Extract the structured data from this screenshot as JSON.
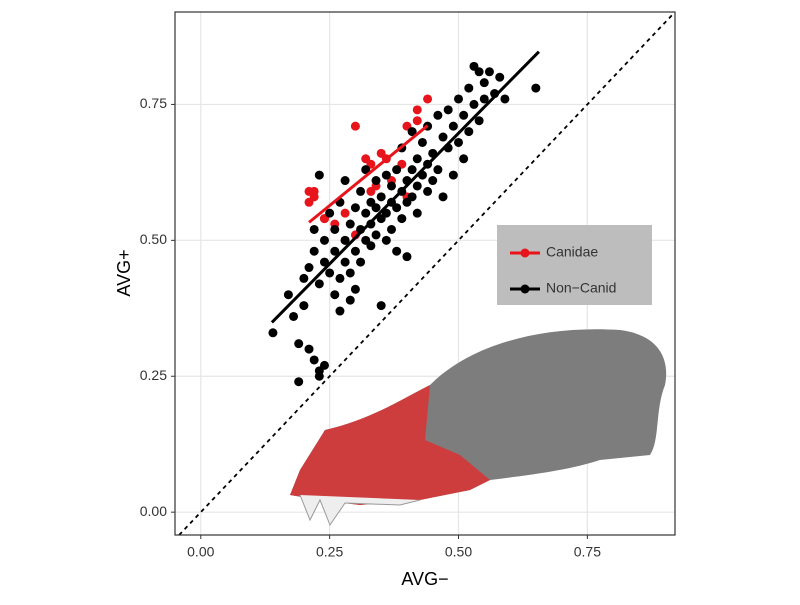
{
  "chart_data": {
    "type": "scatter",
    "x_label": "AVG−",
    "y_label": "AVG+",
    "xlim": [
      -0.05,
      0.92
    ],
    "ylim": [
      -0.042,
      0.92
    ],
    "xticks": [
      {
        "value": 0,
        "label": "0.00"
      },
      {
        "value": 0.25,
        "label": "0.25"
      },
      {
        "value": 0.5,
        "label": "0.50"
      },
      {
        "value": 0.75,
        "label": "0.75"
      }
    ],
    "yticks": [
      {
        "value": 0,
        "label": "0.00"
      },
      {
        "value": 0.25,
        "label": "0.25"
      },
      {
        "value": 0.5,
        "label": "0.50"
      },
      {
        "value": 0.75,
        "label": "0.75"
      }
    ],
    "grid": true,
    "identity_line": true,
    "legend": "right",
    "series": [
      {
        "name": "Canidae",
        "color": "#e8141b",
        "x": [
          0.21,
          0.22,
          0.22,
          0.21,
          0.3,
          0.33,
          0.32,
          0.35,
          0.36,
          0.4,
          0.42,
          0.44,
          0.34,
          0.33,
          0.28,
          0.24,
          0.39,
          0.4,
          0.42,
          0.37,
          0.3,
          0.26,
          0.28,
          0.24
        ],
        "values": [
          0.59,
          0.58,
          0.59,
          0.57,
          0.71,
          0.64,
          0.65,
          0.66,
          0.65,
          0.71,
          0.74,
          0.76,
          0.6,
          0.59,
          0.5,
          0.54,
          0.64,
          0.58,
          0.72,
          0.61,
          0.51,
          0.53,
          0.55,
          0.54
        ],
        "fit": {
          "x": [
            0.21,
            0.44
          ],
          "values": [
            0.533,
            0.711
          ]
        }
      },
      {
        "name": "Non−Canid",
        "color": "#000000",
        "x": [
          0.14,
          0.17,
          0.18,
          0.19,
          0.19,
          0.2,
          0.2,
          0.21,
          0.21,
          0.22,
          0.22,
          0.23,
          0.23,
          0.23,
          0.24,
          0.22,
          0.23,
          0.24,
          0.24,
          0.25,
          0.25,
          0.26,
          0.26,
          0.26,
          0.27,
          0.27,
          0.27,
          0.28,
          0.28,
          0.28,
          0.29,
          0.29,
          0.29,
          0.3,
          0.3,
          0.3,
          0.31,
          0.31,
          0.31,
          0.32,
          0.32,
          0.32,
          0.33,
          0.33,
          0.33,
          0.34,
          0.34,
          0.34,
          0.35,
          0.35,
          0.35,
          0.36,
          0.36,
          0.36,
          0.37,
          0.37,
          0.37,
          0.38,
          0.38,
          0.38,
          0.39,
          0.39,
          0.39,
          0.4,
          0.4,
          0.4,
          0.41,
          0.41,
          0.41,
          0.42,
          0.42,
          0.42,
          0.43,
          0.43,
          0.44,
          0.44,
          0.44,
          0.45,
          0.45,
          0.46,
          0.46,
          0.47,
          0.47,
          0.48,
          0.48,
          0.49,
          0.49,
          0.5,
          0.5,
          0.51,
          0.51,
          0.52,
          0.52,
          0.53,
          0.54,
          0.55,
          0.55,
          0.56,
          0.57,
          0.58,
          0.59,
          0.65,
          0.53,
          0.54
        ],
        "values": [
          0.33,
          0.4,
          0.36,
          0.24,
          0.31,
          0.38,
          0.43,
          0.3,
          0.45,
          0.48,
          0.28,
          0.26,
          0.25,
          0.62,
          0.27,
          0.52,
          0.42,
          0.46,
          0.5,
          0.55,
          0.44,
          0.4,
          0.48,
          0.52,
          0.43,
          0.57,
          0.37,
          0.5,
          0.46,
          0.61,
          0.44,
          0.53,
          0.39,
          0.48,
          0.56,
          0.41,
          0.52,
          0.59,
          0.46,
          0.5,
          0.55,
          0.63,
          0.49,
          0.57,
          0.53,
          0.61,
          0.56,
          0.51,
          0.58,
          0.54,
          0.38,
          0.62,
          0.55,
          0.5,
          0.57,
          0.6,
          0.52,
          0.63,
          0.56,
          0.48,
          0.59,
          0.54,
          0.67,
          0.61,
          0.57,
          0.47,
          0.63,
          0.58,
          0.7,
          0.6,
          0.55,
          0.65,
          0.62,
          0.68,
          0.59,
          0.64,
          0.71,
          0.66,
          0.61,
          0.73,
          0.63,
          0.69,
          0.58,
          0.67,
          0.74,
          0.62,
          0.71,
          0.68,
          0.76,
          0.73,
          0.65,
          0.7,
          0.78,
          0.75,
          0.72,
          0.79,
          0.76,
          0.81,
          0.77,
          0.8,
          0.76,
          0.78,
          0.82,
          0.81
        ],
        "fit": {
          "x": [
            0.138,
            0.656
          ],
          "values": [
            0.349,
            0.847
          ]
        }
      }
    ]
  }
}
